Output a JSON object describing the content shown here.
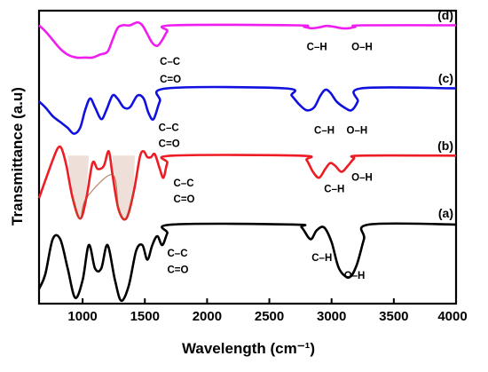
{
  "chart_data": {
    "type": "line",
    "xlabel": "Wavelength (cm⁻¹)",
    "ylabel": "Transmittance (a.u)",
    "xlim": [
      650,
      4000
    ],
    "x_ticks": [
      "1000",
      "1500",
      "2000",
      "2500",
      "3000",
      "3500",
      "4000"
    ],
    "x_tick_values": [
      1000,
      1500,
      2000,
      2500,
      3000,
      3500,
      4000
    ],
    "y_ticks": "none",
    "grid": false,
    "legend": "none",
    "series": [
      {
        "label": "(a)",
        "color": "#000000",
        "baseline": 0.27,
        "points": [
          [
            650,
            0.05
          ],
          [
            700,
            0.1
          ],
          [
            760,
            0.22
          ],
          [
            820,
            0.22
          ],
          [
            880,
            0.12
          ],
          [
            940,
            0.02
          ],
          [
            1000,
            0.08
          ],
          [
            1050,
            0.2
          ],
          [
            1100,
            0.12
          ],
          [
            1150,
            0.12
          ],
          [
            1200,
            0.2
          ],
          [
            1260,
            0.08
          ],
          [
            1310,
            0.01
          ],
          [
            1370,
            0.06
          ],
          [
            1430,
            0.18
          ],
          [
            1480,
            0.2
          ],
          [
            1520,
            0.15
          ],
          [
            1560,
            0.2
          ],
          [
            1600,
            0.23
          ],
          [
            1640,
            0.2
          ],
          [
            1680,
            0.24
          ],
          [
            1720,
            0.27
          ],
          [
            2700,
            0.27
          ],
          [
            2760,
            0.26
          ],
          [
            2830,
            0.22
          ],
          [
            2880,
            0.25
          ],
          [
            2940,
            0.26
          ],
          [
            3000,
            0.21
          ],
          [
            3060,
            0.12
          ],
          [
            3140,
            0.09
          ],
          [
            3200,
            0.13
          ],
          [
            3260,
            0.22
          ],
          [
            3300,
            0.27
          ],
          [
            4000,
            0.27
          ]
        ],
        "annotations": [
          {
            "label": "C–C",
            "note": "band ~1600–1700 cm⁻¹"
          },
          {
            "label": "C=O",
            "note": "band ~1600–1700 cm⁻¹"
          },
          {
            "label": "C–H",
            "note": "band ~2850 cm⁻¹"
          },
          {
            "label": "O–H",
            "note": "band ~3100 cm⁻¹"
          }
        ]
      },
      {
        "label": "(b)",
        "color": "#ee1c24",
        "fill_color": "#a0522d",
        "baseline": 0.505,
        "points": [
          [
            650,
            0.36
          ],
          [
            700,
            0.42
          ],
          [
            760,
            0.49
          ],
          [
            800,
            0.53
          ],
          [
            830,
            0.53
          ],
          [
            870,
            0.47
          ],
          [
            920,
            0.36
          ],
          [
            980,
            0.29
          ],
          [
            1030,
            0.36
          ],
          [
            1080,
            0.48
          ],
          [
            1120,
            0.46
          ],
          [
            1170,
            0.47
          ],
          [
            1210,
            0.52
          ],
          [
            1240,
            0.44
          ],
          [
            1290,
            0.32
          ],
          [
            1350,
            0.29
          ],
          [
            1410,
            0.38
          ],
          [
            1460,
            0.5
          ],
          [
            1490,
            0.52
          ],
          [
            1520,
            0.5
          ],
          [
            1550,
            0.5
          ],
          [
            1580,
            0.51
          ],
          [
            1620,
            0.46
          ],
          [
            1650,
            0.43
          ],
          [
            1680,
            0.48
          ],
          [
            1720,
            0.505
          ],
          [
            2750,
            0.505
          ],
          [
            2800,
            0.49
          ],
          [
            2850,
            0.45
          ],
          [
            2900,
            0.43
          ],
          [
            2950,
            0.46
          ],
          [
            2990,
            0.48
          ],
          [
            3030,
            0.47
          ],
          [
            3080,
            0.45
          ],
          [
            3130,
            0.47
          ],
          [
            3180,
            0.495
          ],
          [
            3230,
            0.505
          ],
          [
            4000,
            0.505
          ]
        ],
        "annotations": [
          {
            "label": "C–C",
            "note": "band ~1650 cm⁻¹"
          },
          {
            "label": "C=O",
            "note": "band ~1650 cm⁻¹"
          },
          {
            "label": "C–H",
            "note": "band ~2900 cm⁻¹"
          },
          {
            "label": "O–H",
            "note": "band ~3100 cm⁻¹"
          }
        ]
      },
      {
        "label": "(c)",
        "color": "#1010e0",
        "baseline": 0.735,
        "points": [
          [
            650,
            0.69
          ],
          [
            700,
            0.67
          ],
          [
            760,
            0.64
          ],
          [
            820,
            0.62
          ],
          [
            880,
            0.6
          ],
          [
            930,
            0.58
          ],
          [
            980,
            0.6
          ],
          [
            1020,
            0.66
          ],
          [
            1060,
            0.7
          ],
          [
            1100,
            0.67
          ],
          [
            1150,
            0.63
          ],
          [
            1190,
            0.66
          ],
          [
            1240,
            0.71
          ],
          [
            1280,
            0.7
          ],
          [
            1330,
            0.67
          ],
          [
            1380,
            0.67
          ],
          [
            1440,
            0.71
          ],
          [
            1490,
            0.7
          ],
          [
            1530,
            0.65
          ],
          [
            1570,
            0.63
          ],
          [
            1620,
            0.69
          ],
          [
            1680,
            0.735
          ],
          [
            2620,
            0.735
          ],
          [
            2680,
            0.71
          ],
          [
            2740,
            0.68
          ],
          [
            2800,
            0.66
          ],
          [
            2860,
            0.67
          ],
          [
            2910,
            0.71
          ],
          [
            2950,
            0.73
          ],
          [
            2990,
            0.72
          ],
          [
            3040,
            0.69
          ],
          [
            3100,
            0.67
          ],
          [
            3160,
            0.66
          ],
          [
            3210,
            0.69
          ],
          [
            3240,
            0.735
          ],
          [
            4000,
            0.735
          ]
        ],
        "annotations": [
          {
            "label": "C–C",
            "note": "band ~1570 cm⁻¹"
          },
          {
            "label": "C=O",
            "note": "band ~1570 cm⁻¹"
          },
          {
            "label": "C–H",
            "note": "band ~2800 cm⁻¹"
          },
          {
            "label": "O–H",
            "note": "band ~3150 cm⁻¹"
          }
        ]
      },
      {
        "label": "(d)",
        "color": "#f01cf0",
        "baseline": 0.95,
        "points": [
          [
            650,
            0.95
          ],
          [
            700,
            0.93
          ],
          [
            760,
            0.9
          ],
          [
            820,
            0.87
          ],
          [
            880,
            0.85
          ],
          [
            950,
            0.84
          ],
          [
            1020,
            0.84
          ],
          [
            1080,
            0.84
          ],
          [
            1140,
            0.85
          ],
          [
            1200,
            0.86
          ],
          [
            1240,
            0.9
          ],
          [
            1280,
            0.94
          ],
          [
            1320,
            0.95
          ],
          [
            1380,
            0.95
          ],
          [
            1440,
            0.96
          ],
          [
            1480,
            0.95
          ],
          [
            1520,
            0.92
          ],
          [
            1560,
            0.89
          ],
          [
            1600,
            0.88
          ],
          [
            1640,
            0.9
          ],
          [
            1680,
            0.93
          ],
          [
            1720,
            0.95
          ],
          [
            2720,
            0.95
          ],
          [
            2780,
            0.945
          ],
          [
            2840,
            0.94
          ],
          [
            2900,
            0.943
          ],
          [
            2960,
            0.948
          ],
          [
            3020,
            0.945
          ],
          [
            3080,
            0.94
          ],
          [
            3140,
            0.94
          ],
          [
            3190,
            0.945
          ],
          [
            3240,
            0.95
          ],
          [
            4000,
            0.95
          ]
        ],
        "annotations": [
          {
            "label": "C–C",
            "note": "band ~1600 cm⁻¹"
          },
          {
            "label": "C=O",
            "note": "band ~1600 cm⁻¹"
          },
          {
            "label": "C–H",
            "note": "band ~2800 cm⁻¹"
          },
          {
            "label": "O–H",
            "note": "band ~3100 cm⁻¹"
          }
        ]
      }
    ]
  }
}
